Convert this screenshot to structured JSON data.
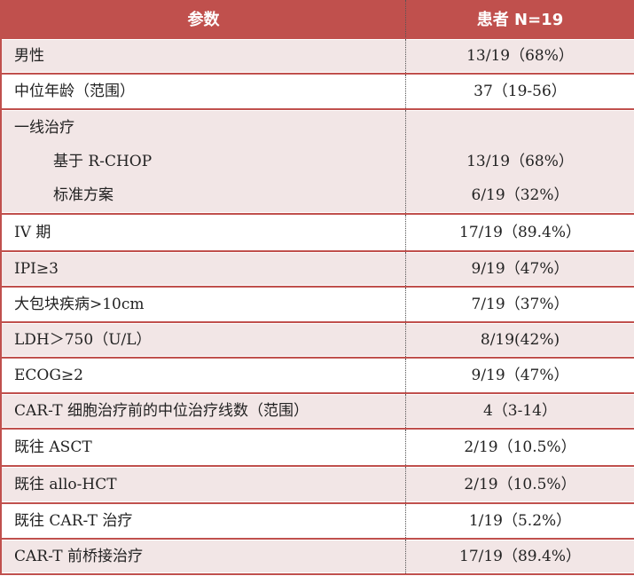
{
  "header": {
    "param": "参数",
    "patients": "患者 N=19"
  },
  "rows": [
    {
      "label": "男性",
      "value": "13/19（68%）"
    },
    {
      "label": "中位年龄（范围）",
      "value": "37（19-56）"
    },
    {
      "label": "一线治疗",
      "value": "",
      "subs": [
        {
          "label": "基于 R-CHOP",
          "value": "13/19（68%）"
        },
        {
          "label": "标准方案",
          "value": "6/19（32%）"
        }
      ]
    },
    {
      "label": "IV 期",
      "value": "17/19（89.4%）"
    },
    {
      "label": "IPI≥3",
      "value": "9/19（47%）"
    },
    {
      "label": "大包块疾病>10cm",
      "value": "7/19（37%）"
    },
    {
      "label": "LDH＞750（U/L）",
      "value": "8/19(42%)"
    },
    {
      "label": "ECOG≥2",
      "value": "9/19（47%）"
    },
    {
      "label": "CAR-T 细胞治疗前的中位治疗线数（范围）",
      "value": "4（3-14）"
    },
    {
      "label": "既往 ASCT",
      "value": "2/19（10.5%）"
    },
    {
      "label": "既往 allo-HCT",
      "value": "2/19（10.5%）"
    },
    {
      "label": "既往 CAR-T 治疗",
      "value": "1/19（5.2%）"
    },
    {
      "label": "CAR-T 前桥接治疗",
      "value": "17/19（89.4%）"
    }
  ],
  "colors": {
    "header_bg": "#c0504d",
    "row_alt": "#f2e6e6",
    "border": "#c0504d"
  }
}
